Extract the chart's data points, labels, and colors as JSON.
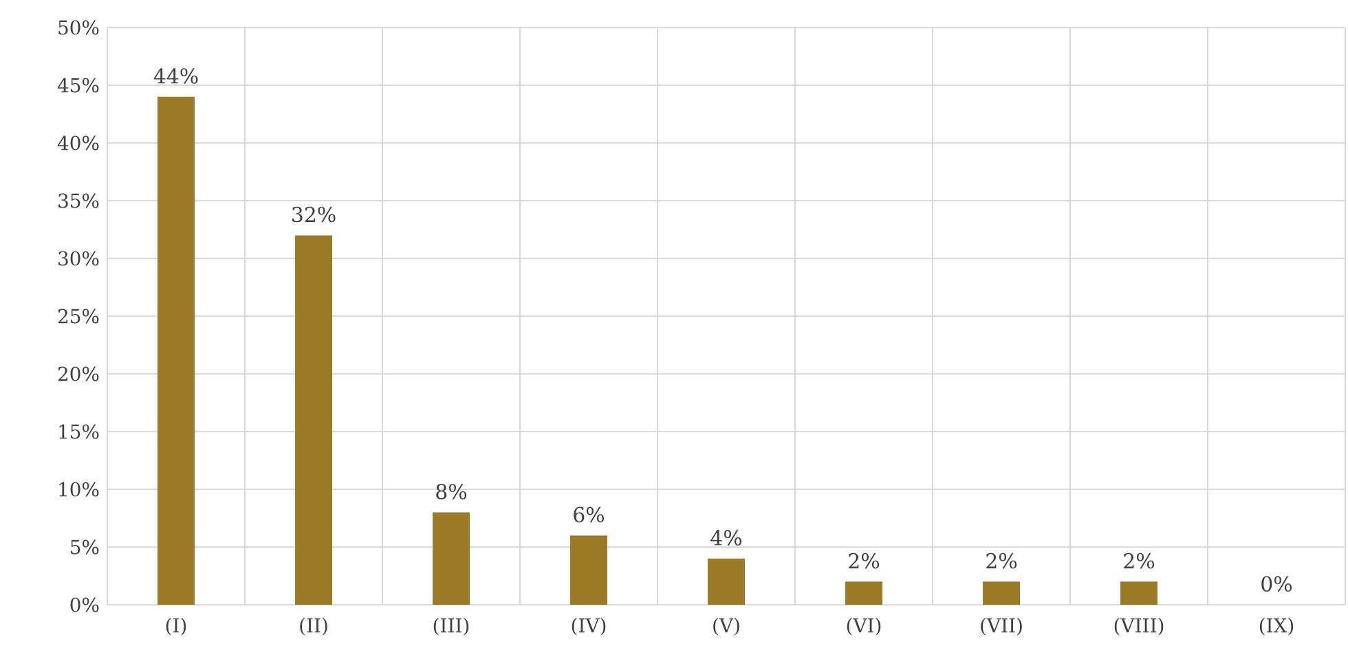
{
  "chart_data": {
    "type": "bar",
    "categories": [
      "(I)",
      "(II)",
      "(III)",
      "(IV)",
      "(V)",
      "(VI)",
      "(VII)",
      "(VIII)",
      "(IX)"
    ],
    "values": [
      44,
      32,
      8,
      6,
      4,
      2,
      2,
      2,
      0
    ],
    "value_labels": [
      "44%",
      "32%",
      "8%",
      "6%",
      "4%",
      "2%",
      "2%",
      "2%",
      "0%"
    ],
    "color": "#9c7b27",
    "ylim": [
      0,
      50
    ],
    "yticks": [
      {
        "value": 0,
        "label": "0%"
      },
      {
        "value": 5,
        "label": "5%"
      },
      {
        "value": 10,
        "label": "10%"
      },
      {
        "value": 15,
        "label": "15%"
      },
      {
        "value": 20,
        "label": "20%"
      },
      {
        "value": 25,
        "label": "25%"
      },
      {
        "value": 30,
        "label": "30%"
      },
      {
        "value": 35,
        "label": "35%"
      },
      {
        "value": 40,
        "label": "40%"
      },
      {
        "value": 45,
        "label": "45%"
      },
      {
        "value": 50,
        "label": "50%"
      }
    ],
    "grid": true
  }
}
